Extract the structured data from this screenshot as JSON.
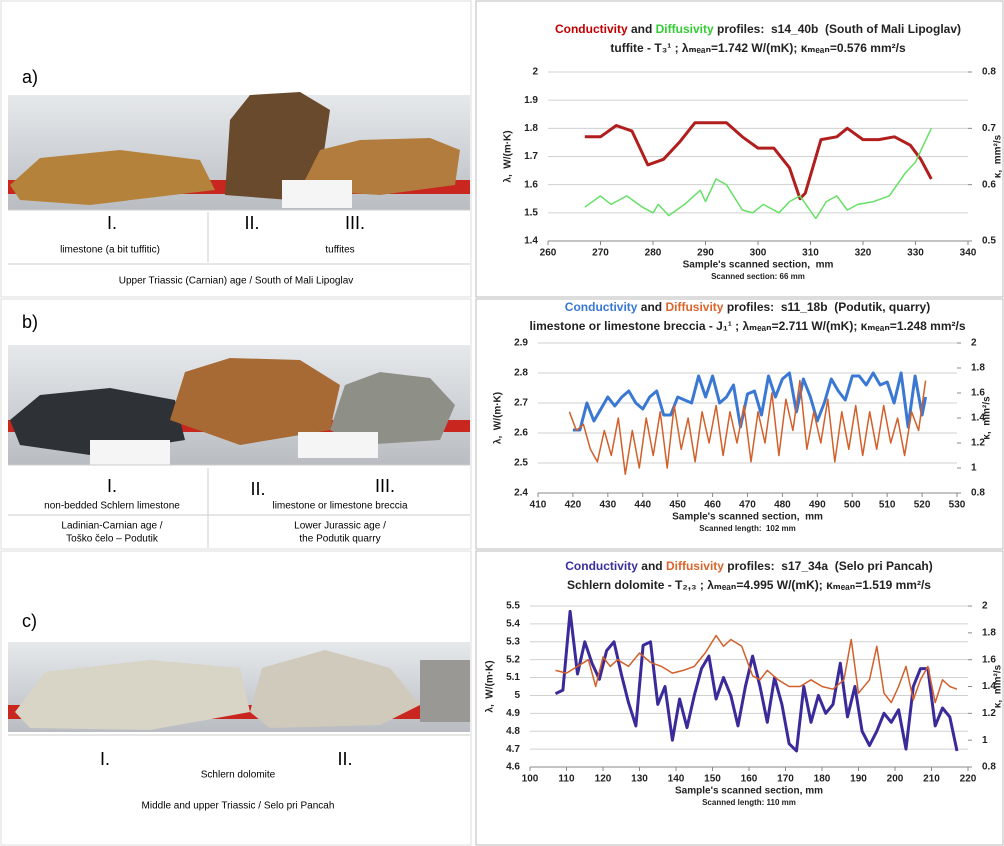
{
  "panels": [
    {
      "label": "a)",
      "markers": [
        "I.",
        "II.",
        "III."
      ],
      "texts": [
        "limestone (a bit tuffitic)",
        "tuffites",
        "Upper Triassic (Carnian) age / South of Mali Lipoglav"
      ]
    },
    {
      "label": "b)",
      "markers": [
        "I.",
        "II.",
        "III."
      ],
      "texts": [
        "non-bedded Schlern limestone",
        "limestone or limestone breccia",
        "Ladinian-Carnian age /",
        "Toško čelo – Podutik",
        "Lower Jurassic age /",
        "the Podutik quarry"
      ]
    },
    {
      "label": "c)",
      "markers": [
        "I.",
        "II."
      ],
      "texts": [
        "Schlern dolomite",
        "Middle and upper Triassic / Selo pri Pancah"
      ]
    }
  ],
  "chart_data": [
    {
      "type": "line",
      "title": [
        {
          "text": "Conductivity",
          "color": "#c00000"
        },
        {
          "text": " and "
        },
        {
          "text": "Diffusivity",
          "color": "#33cc33"
        },
        {
          "text": " profiles:  s14_40b  (South of Mali Lipoglav)"
        }
      ],
      "subtitle": "tuffite - T₃¹ ; λₘₑₐₙ=1.742 W/(mK); κₘₑₐₙ=0.576 mm²/s",
      "x_label": "Sample's scanned section,  mm",
      "note": "Scanned section: 66 mm",
      "y_label": "λ,  W/(m·K)",
      "y2_label": "κ,  mm²/s",
      "xlim": [
        260,
        340
      ],
      "xticks": [
        260,
        270,
        280,
        290,
        300,
        310,
        320,
        330,
        340
      ],
      "ylim": [
        1.4,
        2
      ],
      "yticks": [
        1.4,
        1.5,
        1.6,
        1.7,
        1.8,
        1.9,
        2
      ],
      "y2lim": [
        0.5,
        0.8
      ],
      "y2ticks": [
        0.5,
        0.6,
        0.7,
        0.8
      ],
      "grid": true,
      "series": [
        {
          "color": "#b01e1e",
          "x": [
            267,
            270,
            273,
            276,
            279,
            282,
            285,
            288,
            291,
            294,
            297,
            300,
            303,
            306,
            308,
            309,
            312,
            315,
            317,
            320,
            323,
            326,
            329,
            331,
            333
          ],
          "values": [
            1.77,
            1.77,
            1.81,
            1.79,
            1.67,
            1.69,
            1.75,
            1.82,
            1.82,
            1.82,
            1.77,
            1.73,
            1.73,
            1.66,
            1.55,
            1.57,
            1.76,
            1.77,
            1.8,
            1.76,
            1.76,
            1.77,
            1.74,
            1.69,
            1.62
          ]
        },
        {
          "color": "#66e066",
          "axis": "y2",
          "x": [
            267,
            270,
            272,
            275,
            278,
            280,
            281,
            283,
            286,
            289,
            290,
            292,
            294,
            297,
            299,
            301,
            304,
            306,
            308,
            311,
            313,
            315,
            317,
            319,
            322,
            325,
            328,
            330,
            333
          ],
          "values": [
            0.56,
            0.58,
            0.565,
            0.58,
            0.56,
            0.55,
            0.565,
            0.545,
            0.565,
            0.59,
            0.57,
            0.61,
            0.6,
            0.555,
            0.55,
            0.565,
            0.55,
            0.57,
            0.58,
            0.54,
            0.57,
            0.58,
            0.555,
            0.565,
            0.57,
            0.58,
            0.62,
            0.64,
            0.7
          ]
        }
      ]
    },
    {
      "type": "line",
      "title": [
        {
          "text": "Conductivity",
          "color": "#3a78d4"
        },
        {
          "text": " and "
        },
        {
          "text": "Diffusivity",
          "color": "#d8652c"
        },
        {
          "text": " profiles:  s11_18b  (Podutik, quarry)"
        }
      ],
      "subtitle": "limestone or limestone breccia - J₁¹ ; λₘₑₐₙ=2.711 W/(mK); κₘₑₐₙ=1.248 mm²/s",
      "x_label": "Sample's scanned section,  mm",
      "note": "Scanned length:  102 mm",
      "y_label": "λ,  W/(m·K)",
      "y2_label": "κ,  mm²/s",
      "xlim": [
        410,
        530
      ],
      "xticks": [
        410,
        420,
        430,
        440,
        450,
        460,
        470,
        480,
        490,
        500,
        510,
        520,
        530
      ],
      "ylim": [
        2.4,
        2.9
      ],
      "yticks": [
        2.4,
        2.5,
        2.6,
        2.7,
        2.8,
        2.9
      ],
      "y2lim": [
        0.8,
        2
      ],
      "y2ticks": [
        0.8,
        1,
        1.2,
        1.4,
        1.6,
        1.8,
        2
      ],
      "grid": true,
      "series": [
        {
          "color": "#3a78d4",
          "x": [
            420,
            422,
            424,
            426,
            428,
            430,
            432,
            434,
            436,
            438,
            440,
            442,
            444,
            446,
            448,
            450,
            452,
            454,
            456,
            458,
            460,
            462,
            464,
            466,
            468,
            470,
            472,
            474,
            476,
            478,
            480,
            482,
            484,
            486,
            488,
            490,
            492,
            494,
            496,
            498,
            500,
            502,
            504,
            506,
            508,
            510,
            512,
            514,
            516,
            518,
            520,
            521
          ],
          "values": [
            2.61,
            2.61,
            2.7,
            2.64,
            2.68,
            2.72,
            2.69,
            2.72,
            2.74,
            2.7,
            2.68,
            2.72,
            2.74,
            2.66,
            2.66,
            2.72,
            2.71,
            2.7,
            2.79,
            2.72,
            2.79,
            2.7,
            2.72,
            2.76,
            2.62,
            2.73,
            2.74,
            2.66,
            2.79,
            2.72,
            2.78,
            2.8,
            2.67,
            2.78,
            2.72,
            2.64,
            2.7,
            2.78,
            2.74,
            2.71,
            2.79,
            2.79,
            2.76,
            2.8,
            2.76,
            2.77,
            2.7,
            2.8,
            2.62,
            2.79,
            2.66,
            2.72
          ]
        },
        {
          "color": "#d2602a",
          "axis": "y2",
          "x": [
            419,
            421,
            423,
            425,
            427,
            429,
            431,
            433,
            435,
            437,
            439,
            441,
            443,
            445,
            447,
            449,
            451,
            453,
            455,
            457,
            459,
            461,
            463,
            465,
            467,
            469,
            471,
            473,
            475,
            477,
            479,
            481,
            483,
            485,
            487,
            489,
            491,
            493,
            495,
            497,
            499,
            501,
            503,
            505,
            507,
            509,
            511,
            513,
            515,
            517,
            519,
            521
          ],
          "values": [
            1.45,
            1.3,
            1.35,
            1.15,
            1.05,
            1.3,
            1.1,
            1.4,
            0.95,
            1.3,
            1.0,
            1.4,
            1.1,
            1.45,
            1.0,
            1.5,
            1.15,
            1.4,
            1.05,
            1.45,
            1.2,
            1.5,
            1.1,
            1.45,
            1.2,
            1.5,
            1.05,
            1.45,
            1.2,
            1.6,
            1.1,
            1.55,
            1.3,
            1.7,
            1.15,
            1.45,
            1.2,
            1.55,
            1.05,
            1.45,
            1.15,
            1.5,
            1.1,
            1.45,
            1.15,
            1.5,
            1.2,
            1.4,
            1.1,
            1.45,
            1.3,
            1.7
          ]
        }
      ]
    },
    {
      "type": "line",
      "title": [
        {
          "text": "Conductivity",
          "color": "#3b2fa0"
        },
        {
          "text": " and "
        },
        {
          "text": "Diffusivity",
          "color": "#d8652c"
        },
        {
          "text": " profiles:  s17_34a  (Selo pri Pancah)"
        }
      ],
      "subtitle": "Schlern dolomite - T₂,₃ ; λₘₑₐₙ=4.995 W/(mK);  κₘₑₐₙ=1.519 mm²/s",
      "x_label": "Sample's scanned section, mm",
      "note": "Scanned length: 110 mm",
      "y_label": "λ,  W/(m·K)",
      "y2_label": "κ,  mm²/s",
      "xlim": [
        100,
        220
      ],
      "xticks": [
        100,
        110,
        120,
        130,
        140,
        150,
        160,
        170,
        180,
        190,
        200,
        210,
        220
      ],
      "ylim": [
        4.6,
        5.5
      ],
      "yticks": [
        4.6,
        4.7,
        4.8,
        4.9,
        5,
        5.1,
        5.2,
        5.3,
        5.4,
        5.5
      ],
      "y2lim": [
        0.8,
        2
      ],
      "y2ticks": [
        0.8,
        1,
        1.2,
        1.4,
        1.6,
        1.8,
        2
      ],
      "grid": true,
      "series": [
        {
          "color": "#3a2a9a",
          "x": [
            107,
            109,
            111,
            113,
            115,
            117,
            119,
            121,
            123,
            125,
            127,
            129,
            131,
            133,
            135,
            137,
            139,
            141,
            143,
            145,
            147,
            149,
            151,
            153,
            155,
            157,
            159,
            161,
            163,
            165,
            167,
            169,
            171,
            173,
            175,
            177,
            179,
            181,
            183,
            185,
            187,
            189,
            191,
            193,
            195,
            197,
            199,
            201,
            203,
            205,
            207,
            209,
            211,
            213,
            215,
            217
          ],
          "values": [
            5.01,
            5.03,
            5.47,
            5.12,
            5.3,
            5.18,
            5.09,
            5.25,
            5.3,
            5.12,
            4.96,
            4.83,
            5.28,
            5.3,
            4.95,
            5.05,
            4.75,
            4.98,
            4.82,
            5.0,
            5.15,
            5.22,
            4.98,
            5.1,
            5.0,
            4.83,
            5.05,
            5.22,
            5.05,
            4.85,
            5.1,
            4.95,
            4.73,
            4.69,
            5.05,
            4.85,
            5.0,
            4.9,
            4.95,
            5.18,
            4.88,
            5.05,
            4.8,
            4.72,
            4.8,
            4.9,
            4.85,
            4.92,
            4.7,
            5.05,
            5.15,
            5.15,
            4.83,
            4.93,
            4.88,
            4.69
          ]
        },
        {
          "color": "#d2602a",
          "axis": "y2",
          "x": [
            107,
            110,
            113,
            116,
            118,
            120,
            122,
            124,
            127,
            130,
            133,
            136,
            139,
            142,
            145,
            148,
            151,
            153,
            155,
            158,
            161,
            163,
            165,
            168,
            171,
            174,
            177,
            180,
            183,
            186,
            188,
            190,
            193,
            195,
            197,
            199,
            201,
            203,
            205,
            207,
            209,
            211,
            213,
            215,
            217
          ],
          "values": [
            1.52,
            1.5,
            1.55,
            1.6,
            1.4,
            1.62,
            1.55,
            1.6,
            1.55,
            1.65,
            1.58,
            1.55,
            1.5,
            1.52,
            1.55,
            1.65,
            1.78,
            1.7,
            1.75,
            1.7,
            1.48,
            1.45,
            1.52,
            1.45,
            1.4,
            1.4,
            1.45,
            1.4,
            1.38,
            1.45,
            1.75,
            1.35,
            1.45,
            1.7,
            1.35,
            1.28,
            1.4,
            1.55,
            1.3,
            1.45,
            1.55,
            1.28,
            1.45,
            1.4,
            1.38
          ]
        }
      ]
    }
  ]
}
